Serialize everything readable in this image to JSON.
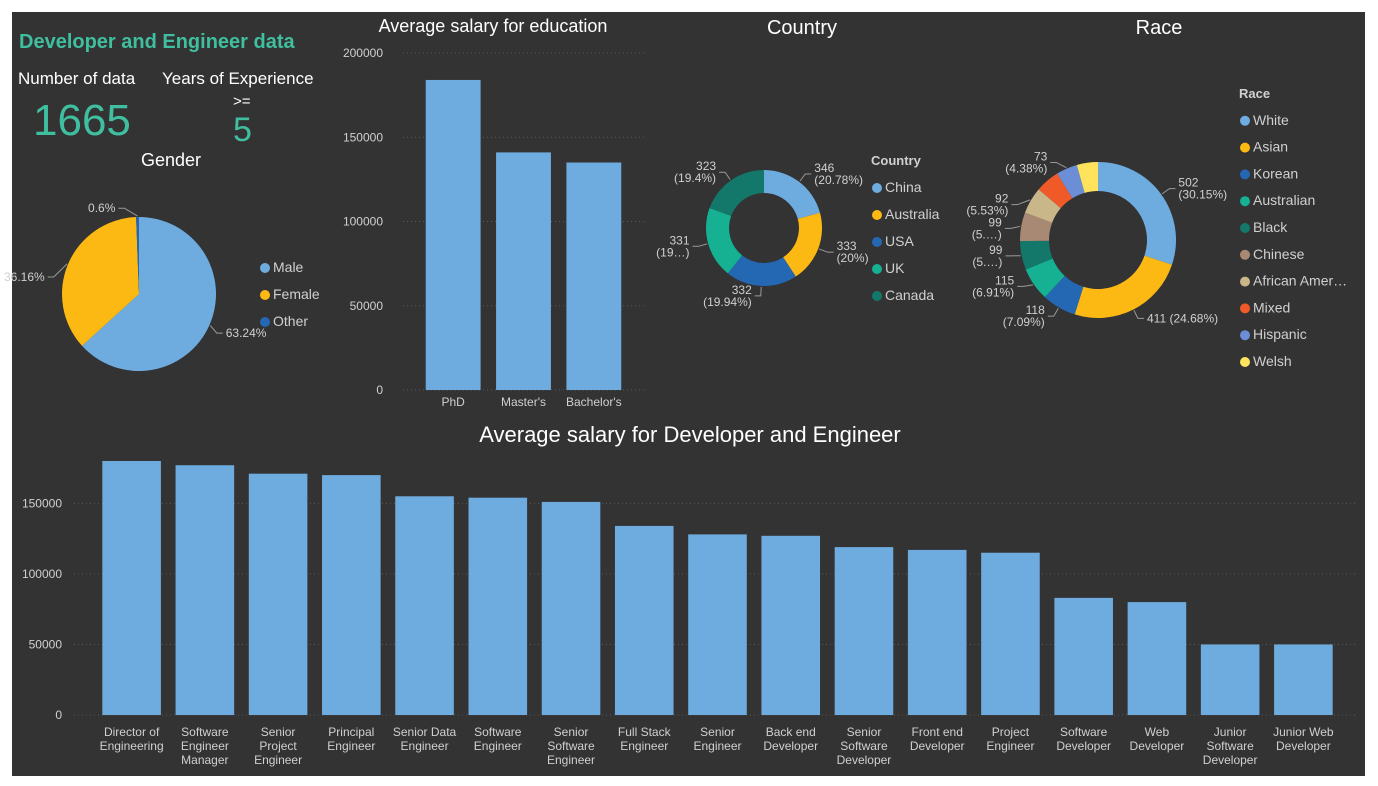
{
  "dashboard": {
    "title": "Developer and Engineer data",
    "count_label": "Number of data",
    "count_value": "1665",
    "exp_label": "Years of Experience",
    "exp_op": ">=",
    "exp_value": "5",
    "gender_title": "Gender"
  },
  "colors": {
    "background": "#333333",
    "accent": "#3fbf9f",
    "bar": "#6eace0",
    "grid": "#595959",
    "text": "#ffffff",
    "label": "#d0d0d0"
  },
  "chart_data": [
    {
      "id": "gender",
      "type": "pie",
      "title": "Gender",
      "legend_position": "right",
      "slices": [
        {
          "label": "Male",
          "value": 63.24,
          "display": "63.24%",
          "color": "#6eace0"
        },
        {
          "label": "Female",
          "value": 36.16,
          "display": "36.16%",
          "color": "#fdb913"
        },
        {
          "label": "Other",
          "value": 0.6,
          "display": "0.6%",
          "color": "#2468b3"
        }
      ]
    },
    {
      "id": "education",
      "type": "bar",
      "title": "Average salary for education",
      "categories": [
        "PhD",
        "Master's",
        "Bachelor's"
      ],
      "values": [
        184000,
        141000,
        135000
      ],
      "ylim": [
        0,
        200000
      ],
      "yticks": [
        "0",
        "50000",
        "100000",
        "150000",
        "200000"
      ],
      "grid": true
    },
    {
      "id": "country",
      "type": "pie",
      "title": "Country",
      "legend_title": "Country",
      "legend_position": "right",
      "slices": [
        {
          "label": "China",
          "value": 346,
          "display": [
            "346",
            "(20.78%)"
          ],
          "color": "#6eace0"
        },
        {
          "label": "Australia",
          "value": 333,
          "display": [
            "333",
            "(20%)"
          ],
          "color": "#fdb913"
        },
        {
          "label": "USA",
          "value": 332,
          "display": [
            "332",
            "(19.94%)"
          ],
          "color": "#2468b3"
        },
        {
          "label": "UK",
          "value": 331,
          "display": [
            "331",
            "(19…)"
          ],
          "color": "#16b092"
        },
        {
          "label": "Canada",
          "value": 323,
          "display": [
            "323",
            "(19.4%)"
          ],
          "color": "#13776a"
        }
      ]
    },
    {
      "id": "race",
      "type": "pie",
      "title": "Race",
      "legend_title": "Race",
      "legend_position": "right",
      "slices": [
        {
          "label": "White",
          "value": 502,
          "display": [
            "502",
            "(30.15%)"
          ],
          "color": "#6eace0"
        },
        {
          "label": "Asian",
          "value": 411,
          "display": [
            "411 (24.68%)"
          ],
          "color": "#fdb913"
        },
        {
          "label": "Korean",
          "value": 118,
          "display": [
            "118",
            "(7.09%)"
          ],
          "color": "#2468b3"
        },
        {
          "label": "Australian",
          "value": 115,
          "display": [
            "115",
            "(6.91%)"
          ],
          "color": "#16b092"
        },
        {
          "label": "Black",
          "value": 99,
          "display": [
            "99",
            "(5.…)"
          ],
          "color": "#13776a"
        },
        {
          "label": "Chinese",
          "value": 99,
          "display": [
            "99",
            "(5.…)"
          ],
          "color": "#a88a74"
        },
        {
          "label": "African Amer…",
          "value": 92,
          "display": [
            "92",
            "(5.53%)"
          ],
          "color": "#c9b78a"
        },
        {
          "label": "Mixed",
          "value": 83,
          "display": [],
          "color": "#ef5a28"
        },
        {
          "label": "Hispanic",
          "value": 73,
          "display": [
            "73",
            "(4.38%)"
          ],
          "color": "#6b8ed6"
        },
        {
          "label": "Welsh",
          "value": 73,
          "display": [],
          "color": "#ffe35c"
        }
      ]
    },
    {
      "id": "role",
      "type": "bar",
      "title": "Average salary for Developer and Engineer",
      "categories": [
        [
          "Director of",
          "Engineering"
        ],
        [
          "Software",
          "Engineer",
          "Manager"
        ],
        [
          "Senior",
          "Project",
          "Engineer"
        ],
        [
          "Principal",
          "Engineer"
        ],
        [
          "Senior Data",
          "Engineer"
        ],
        [
          "Software",
          "Engineer"
        ],
        [
          "Senior",
          "Software",
          "Engineer"
        ],
        [
          "Full Stack",
          "Engineer"
        ],
        [
          "Senior",
          "Engineer"
        ],
        [
          "Back end",
          "Developer"
        ],
        [
          "Senior",
          "Software",
          "Developer"
        ],
        [
          "Front end",
          "Developer"
        ],
        [
          "Project",
          "Engineer"
        ],
        [
          "Software",
          "Developer"
        ],
        [
          "Web",
          "Developer"
        ],
        [
          "Junior",
          "Software",
          "Developer"
        ],
        [
          "Junior Web",
          "Developer"
        ]
      ],
      "values": [
        180000,
        177000,
        171000,
        170000,
        155000,
        154000,
        151000,
        134000,
        128000,
        127000,
        119000,
        117000,
        115000,
        83000,
        80000,
        50000,
        50000
      ],
      "ylim": [
        0,
        180000
      ],
      "yticks": [
        "0",
        "50000",
        "100000",
        "150000"
      ],
      "grid": true
    }
  ]
}
